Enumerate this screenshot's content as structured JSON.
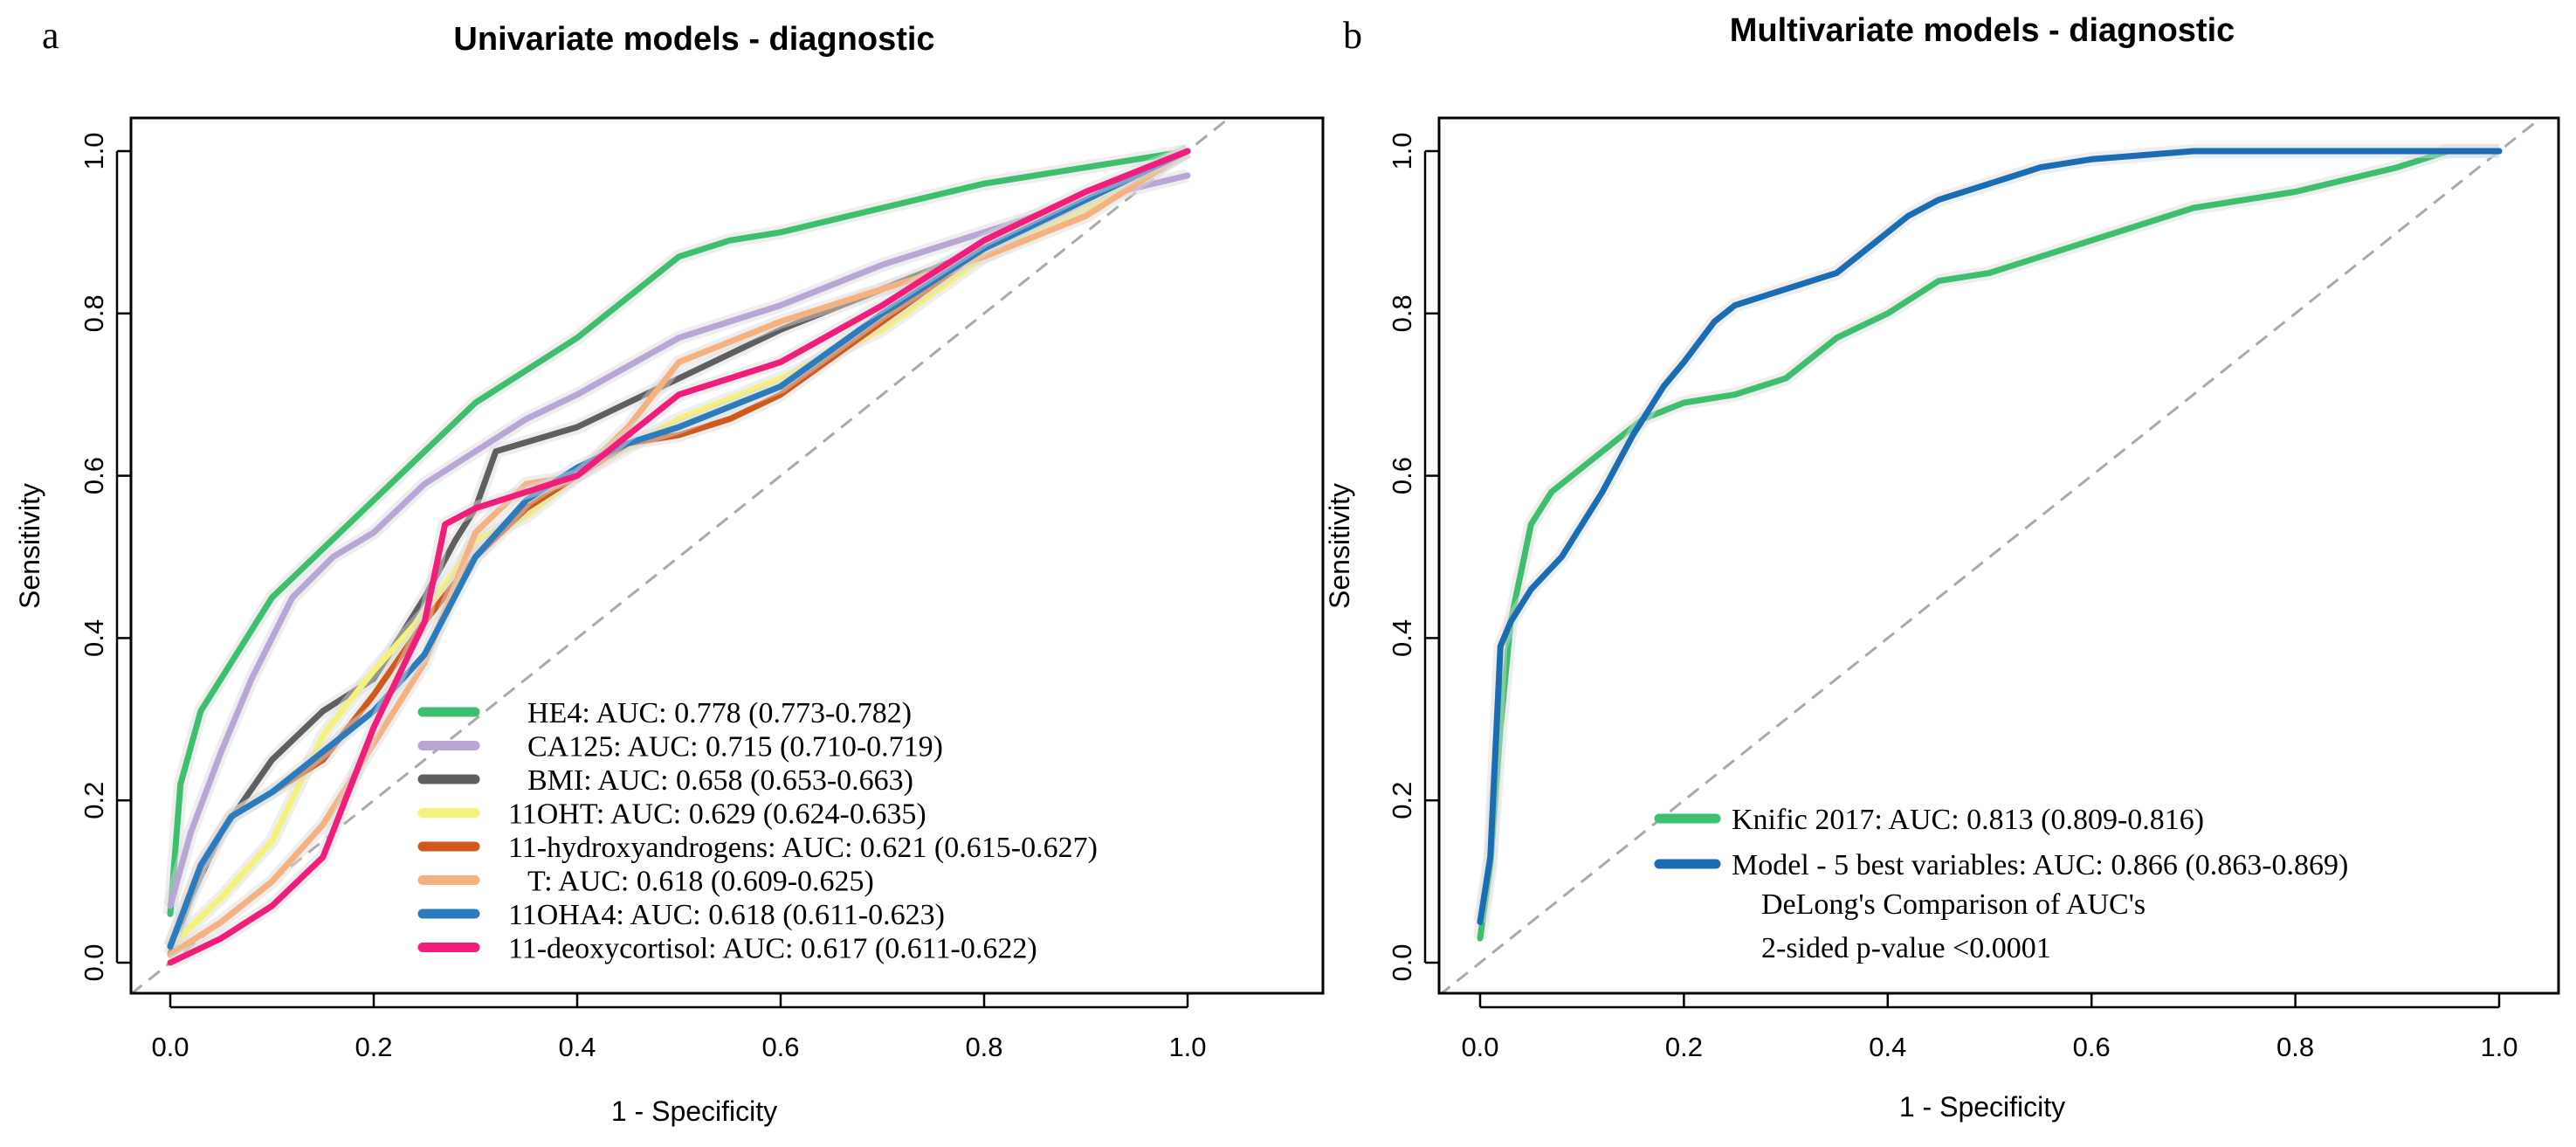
{
  "chart_data": [
    {
      "type": "line",
      "panel": "a",
      "title": "Univariate models - diagnostic",
      "xlabel": "1 - Specificity",
      "ylabel": "Sensitivity",
      "xlim": [
        0,
        1
      ],
      "ylim": [
        0,
        1
      ],
      "xticks": [
        "0.0",
        "0.2",
        "0.4",
        "0.6",
        "0.8",
        "1.0"
      ],
      "yticks": [
        "0.0",
        "0.2",
        "0.4",
        "0.6",
        "0.8",
        "1.0"
      ],
      "reference_line": "dashed diagonal",
      "legend_position": "bottom-right",
      "series": [
        {
          "name": "HE4",
          "label": "HE4: AUC: 0.778 (0.773-0.782)",
          "color": "#3dbf6e",
          "points": [
            [
              0,
              0.06
            ],
            [
              0.01,
              0.22
            ],
            [
              0.03,
              0.31
            ],
            [
              0.06,
              0.37
            ],
            [
              0.1,
              0.45
            ],
            [
              0.15,
              0.51
            ],
            [
              0.2,
              0.57
            ],
            [
              0.25,
              0.63
            ],
            [
              0.3,
              0.69
            ],
            [
              0.35,
              0.73
            ],
            [
              0.4,
              0.77
            ],
            [
              0.45,
              0.82
            ],
            [
              0.5,
              0.87
            ],
            [
              0.55,
              0.89
            ],
            [
              0.6,
              0.9
            ],
            [
              0.7,
              0.93
            ],
            [
              0.8,
              0.96
            ],
            [
              0.9,
              0.98
            ],
            [
              1,
              1
            ]
          ]
        },
        {
          "name": "CA125",
          "label": "CA125: AUC: 0.715 (0.710-0.719)",
          "color": "#b8a6d6",
          "points": [
            [
              0,
              0.07
            ],
            [
              0.02,
              0.16
            ],
            [
              0.05,
              0.26
            ],
            [
              0.08,
              0.35
            ],
            [
              0.12,
              0.45
            ],
            [
              0.16,
              0.5
            ],
            [
              0.2,
              0.53
            ],
            [
              0.25,
              0.59
            ],
            [
              0.3,
              0.63
            ],
            [
              0.35,
              0.67
            ],
            [
              0.4,
              0.7
            ],
            [
              0.5,
              0.77
            ],
            [
              0.6,
              0.81
            ],
            [
              0.7,
              0.86
            ],
            [
              0.8,
              0.9
            ],
            [
              0.9,
              0.94
            ],
            [
              1,
              0.97
            ]
          ]
        },
        {
          "name": "BMI",
          "label": "BMI: AUC: 0.658 (0.653-0.663)",
          "color": "#5f5f5f",
          "points": [
            [
              0,
              0.01
            ],
            [
              0.02,
              0.08
            ],
            [
              0.05,
              0.16
            ],
            [
              0.1,
              0.25
            ],
            [
              0.15,
              0.31
            ],
            [
              0.2,
              0.35
            ],
            [
              0.25,
              0.45
            ],
            [
              0.28,
              0.52
            ],
            [
              0.3,
              0.56
            ],
            [
              0.32,
              0.63
            ],
            [
              0.4,
              0.66
            ],
            [
              0.5,
              0.72
            ],
            [
              0.6,
              0.78
            ],
            [
              0.7,
              0.83
            ],
            [
              0.8,
              0.88
            ],
            [
              0.9,
              0.93
            ],
            [
              1,
              1
            ]
          ]
        },
        {
          "name": "11OHT",
          "label": "11OHT: AUC: 0.629 (0.624-0.635)",
          "color": "#f5f27c",
          "points": [
            [
              0,
              0.02
            ],
            [
              0.05,
              0.08
            ],
            [
              0.1,
              0.15
            ],
            [
              0.15,
              0.28
            ],
            [
              0.2,
              0.36
            ],
            [
              0.25,
              0.43
            ],
            [
              0.3,
              0.52
            ],
            [
              0.35,
              0.55
            ],
            [
              0.4,
              0.6
            ],
            [
              0.5,
              0.67
            ],
            [
              0.6,
              0.72
            ],
            [
              0.7,
              0.78
            ],
            [
              0.8,
              0.87
            ],
            [
              0.9,
              0.93
            ],
            [
              1,
              1
            ]
          ]
        },
        {
          "name": "11-hydroxyandrogens",
          "label": "11-hydroxyandrogens: AUC: 0.621 (0.615-0.627)",
          "color": "#d0591c",
          "points": [
            [
              0,
              0.02
            ],
            [
              0.03,
              0.12
            ],
            [
              0.06,
              0.18
            ],
            [
              0.1,
              0.21
            ],
            [
              0.15,
              0.25
            ],
            [
              0.2,
              0.33
            ],
            [
              0.25,
              0.42
            ],
            [
              0.3,
              0.5
            ],
            [
              0.35,
              0.56
            ],
            [
              0.4,
              0.6
            ],
            [
              0.45,
              0.64
            ],
            [
              0.5,
              0.65
            ],
            [
              0.55,
              0.67
            ],
            [
              0.6,
              0.7
            ],
            [
              0.7,
              0.79
            ],
            [
              0.8,
              0.88
            ],
            [
              0.9,
              0.94
            ],
            [
              1,
              1
            ]
          ]
        },
        {
          "name": "T",
          "label": "T: AUC: 0.618 (0.609-0.625)",
          "color": "#f5b17f",
          "points": [
            [
              0,
              0.01
            ],
            [
              0.05,
              0.05
            ],
            [
              0.1,
              0.1
            ],
            [
              0.15,
              0.17
            ],
            [
              0.2,
              0.27
            ],
            [
              0.25,
              0.37
            ],
            [
              0.3,
              0.53
            ],
            [
              0.35,
              0.59
            ],
            [
              0.4,
              0.6
            ],
            [
              0.45,
              0.66
            ],
            [
              0.5,
              0.74
            ],
            [
              0.6,
              0.79
            ],
            [
              0.7,
              0.83
            ],
            [
              0.8,
              0.87
            ],
            [
              0.9,
              0.92
            ],
            [
              1,
              1
            ]
          ]
        },
        {
          "name": "11OHA4",
          "label": "11OHA4: AUC: 0.618 (0.611-0.623)",
          "color": "#2b7bbd",
          "points": [
            [
              0,
              0.02
            ],
            [
              0.03,
              0.12
            ],
            [
              0.06,
              0.18
            ],
            [
              0.1,
              0.21
            ],
            [
              0.15,
              0.26
            ],
            [
              0.2,
              0.31
            ],
            [
              0.25,
              0.38
            ],
            [
              0.3,
              0.5
            ],
            [
              0.35,
              0.57
            ],
            [
              0.4,
              0.61
            ],
            [
              0.45,
              0.64
            ],
            [
              0.5,
              0.66
            ],
            [
              0.6,
              0.71
            ],
            [
              0.7,
              0.8
            ],
            [
              0.8,
              0.88
            ],
            [
              0.9,
              0.94
            ],
            [
              1,
              1
            ]
          ]
        },
        {
          "name": "11-deoxycortisol",
          "label": "11-deoxycortisol: AUC: 0.617 (0.611-0.622)",
          "color": "#f21c7a",
          "points": [
            [
              0,
              0
            ],
            [
              0.05,
              0.03
            ],
            [
              0.1,
              0.07
            ],
            [
              0.15,
              0.13
            ],
            [
              0.2,
              0.29
            ],
            [
              0.25,
              0.42
            ],
            [
              0.27,
              0.54
            ],
            [
              0.3,
              0.56
            ],
            [
              0.35,
              0.58
            ],
            [
              0.4,
              0.6
            ],
            [
              0.45,
              0.65
            ],
            [
              0.5,
              0.7
            ],
            [
              0.6,
              0.74
            ],
            [
              0.7,
              0.81
            ],
            [
              0.8,
              0.89
            ],
            [
              0.9,
              0.95
            ],
            [
              1,
              1
            ]
          ]
        }
      ]
    },
    {
      "type": "line",
      "panel": "b",
      "title": "Multivariate models - diagnostic",
      "xlabel": "1 - Specificity",
      "ylabel": "Sensitivity",
      "xlim": [
        0,
        1
      ],
      "ylim": [
        0,
        1
      ],
      "xticks": [
        "0.0",
        "0.2",
        "0.4",
        "0.6",
        "0.8",
        "1.0"
      ],
      "yticks": [
        "0.0",
        "0.2",
        "0.4",
        "0.6",
        "0.8",
        "1.0"
      ],
      "reference_line": "dashed diagonal",
      "legend_position": "bottom-right",
      "notes": [
        "DeLong's Comparison of AUC's",
        "2-sided p-value <0.0001"
      ],
      "series": [
        {
          "name": "Knific 2017",
          "label": "Knific 2017: AUC: 0.813 (0.809-0.816)",
          "color": "#3dbf6e",
          "points": [
            [
              0,
              0.03
            ],
            [
              0.01,
              0.12
            ],
            [
              0.02,
              0.29
            ],
            [
              0.03,
              0.42
            ],
            [
              0.05,
              0.54
            ],
            [
              0.07,
              0.58
            ],
            [
              0.1,
              0.61
            ],
            [
              0.13,
              0.64
            ],
            [
              0.16,
              0.67
            ],
            [
              0.2,
              0.69
            ],
            [
              0.25,
              0.7
            ],
            [
              0.3,
              0.72
            ],
            [
              0.35,
              0.77
            ],
            [
              0.4,
              0.8
            ],
            [
              0.45,
              0.84
            ],
            [
              0.5,
              0.85
            ],
            [
              0.6,
              0.89
            ],
            [
              0.7,
              0.93
            ],
            [
              0.8,
              0.95
            ],
            [
              0.9,
              0.98
            ],
            [
              0.95,
              1
            ],
            [
              1,
              1
            ]
          ]
        },
        {
          "name": "Model - 5 best variables",
          "label": "Model - 5 best variables: AUC: 0.866 (0.863-0.869)",
          "color": "#1a6db3",
          "points": [
            [
              0,
              0.05
            ],
            [
              0.01,
              0.13
            ],
            [
              0.02,
              0.39
            ],
            [
              0.03,
              0.42
            ],
            [
              0.05,
              0.46
            ],
            [
              0.08,
              0.5
            ],
            [
              0.12,
              0.58
            ],
            [
              0.15,
              0.65
            ],
            [
              0.18,
              0.71
            ],
            [
              0.2,
              0.74
            ],
            [
              0.23,
              0.79
            ],
            [
              0.25,
              0.81
            ],
            [
              0.3,
              0.83
            ],
            [
              0.35,
              0.85
            ],
            [
              0.38,
              0.88
            ],
            [
              0.42,
              0.92
            ],
            [
              0.45,
              0.94
            ],
            [
              0.5,
              0.96
            ],
            [
              0.55,
              0.98
            ],
            [
              0.6,
              0.99
            ],
            [
              0.7,
              1
            ],
            [
              1,
              1
            ]
          ]
        }
      ]
    }
  ]
}
